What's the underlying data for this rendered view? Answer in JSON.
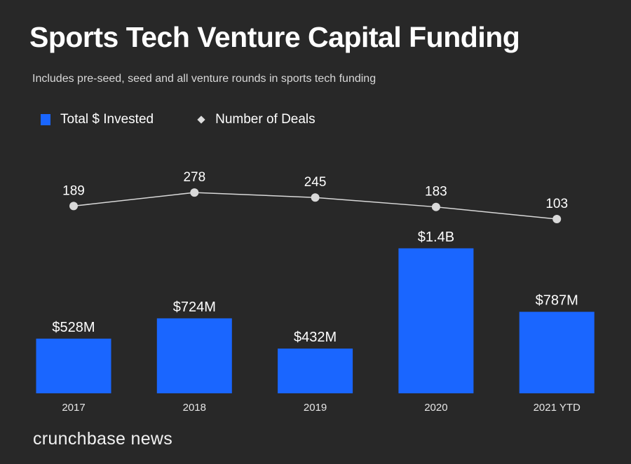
{
  "chart_data": {
    "type": "bar",
    "title": "Sports Tech Venture Capital Funding",
    "subtitle": "Includes pre-seed, seed and all venture rounds in sports tech funding",
    "categories": [
      "2017",
      "2018",
      "2019",
      "2020",
      "2021 YTD"
    ],
    "legend": {
      "placement": "top-left",
      "entries": [
        "Total $ Invested",
        "Number of Deals"
      ]
    },
    "series": [
      {
        "name": "Total $ Invested",
        "type": "bar",
        "unit": "USD millions",
        "values": [
          528,
          724,
          432,
          1400,
          787
        ],
        "labels": [
          "$528M",
          "$724M",
          "$432M",
          "$1.4B",
          "$787M"
        ],
        "color": "#1a66ff"
      },
      {
        "name": "Number of Deals",
        "type": "line",
        "values": [
          189,
          278,
          245,
          183,
          103
        ],
        "labels": [
          "189",
          "278",
          "245",
          "183",
          "103"
        ],
        "color": "#d9d9d9"
      }
    ],
    "grid": false,
    "axes_visible": false
  },
  "brand": "crunchbase news",
  "colors": {
    "background": "#282828",
    "bar": "#1a66ff",
    "line": "#d9d9d9"
  }
}
